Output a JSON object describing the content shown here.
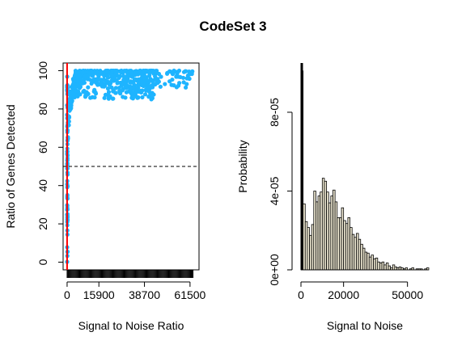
{
  "title": "CodeSet 3",
  "colors": {
    "points": "#1eb4ff",
    "vline": "#ff0000",
    "bars_fill": "#ece6d0",
    "ink": "#000000"
  },
  "chart_data": [
    {
      "type": "scatter",
      "xlabel": "Signal to Noise Ratio",
      "ylabel": "Ratio of Genes Detected",
      "xlim": [
        -2000,
        66000
      ],
      "ylim": [
        -4,
        104
      ],
      "x_ticks": [
        "0",
        "15900",
        "38700",
        "61500"
      ],
      "x_tick_values": [
        0,
        15900,
        38700,
        61500
      ],
      "y_ticks": [
        "0",
        "20",
        "40",
        "60",
        "80",
        "100"
      ],
      "y_tick_values": [
        0,
        20,
        40,
        60,
        80,
        100
      ],
      "reference_lines": {
        "horizontal_dashed_y": 50,
        "vertical_red_x": 0
      },
      "rug": "dense tick marks along x axis from 0 to ~61500",
      "point_groups": [
        {
          "name": "",
          "description": "column of points at x≈0 spanning y 0–100",
          "x": 0,
          "y_range": [
            0,
            100
          ]
        },
        {
          "name": "",
          "description": "rising cluster",
          "x_range": [
            0,
            5000
          ],
          "y_range": [
            62,
            98
          ]
        },
        {
          "name": "",
          "description": "dense band",
          "x_range": [
            5000,
            45000
          ],
          "y_range": [
            84,
            100
          ]
        },
        {
          "name": "",
          "description": "sparse tail",
          "x_range": [
            45000,
            63000
          ],
          "y_range": [
            91,
            100
          ]
        }
      ]
    },
    {
      "type": "bar",
      "subtype": "histogram",
      "xlabel": "Signal to Noise",
      "ylabel": "Probability",
      "xlim": [
        0,
        60000
      ],
      "ylim": [
        0,
        0.000105
      ],
      "x_ticks": [
        "0",
        "20000",
        "50000"
      ],
      "x_tick_values": [
        0,
        20000,
        50000
      ],
      "y_ticks": [
        "0e+00",
        "4e-05",
        "8e-05"
      ],
      "y_tick_values": [
        0,
        4e-05,
        8e-05
      ],
      "bin_width": 1000,
      "values": [
        0.000101,
        3.35e-05,
        2.45e-05,
        2.15e-05,
        1.75e-05,
        2.3e-05,
        4e-05,
        3.45e-05,
        3.75e-05,
        3.95e-05,
        4.65e-05,
        4.5e-05,
        3.95e-05,
        3.4e-05,
        3.75e-05,
        4.05e-05,
        3.45e-05,
        2.65e-05,
        2.65e-05,
        3.15e-05,
        2.5e-05,
        2.35e-05,
        2.65e-05,
        2.15e-05,
        1.8e-05,
        1.65e-05,
        1.85e-05,
        1.55e-05,
        1.3e-05,
        1.1e-05,
        9e-06,
        8.5e-06,
        6.5e-06,
        7.5e-06,
        5.5e-06,
        6e-06,
        4e-06,
        3.5e-06,
        4e-06,
        2.5e-06,
        3.5e-06,
        2e-06,
        1e-06,
        2.5e-06,
        1.5e-06,
        1e-06,
        1.5e-06,
        1e-06,
        5e-07,
        1e-06,
        0,
        5e-07,
        1e-06,
        0,
        5e-07,
        5e-07,
        5e-07,
        0,
        5e-07,
        1e-06
      ]
    }
  ]
}
